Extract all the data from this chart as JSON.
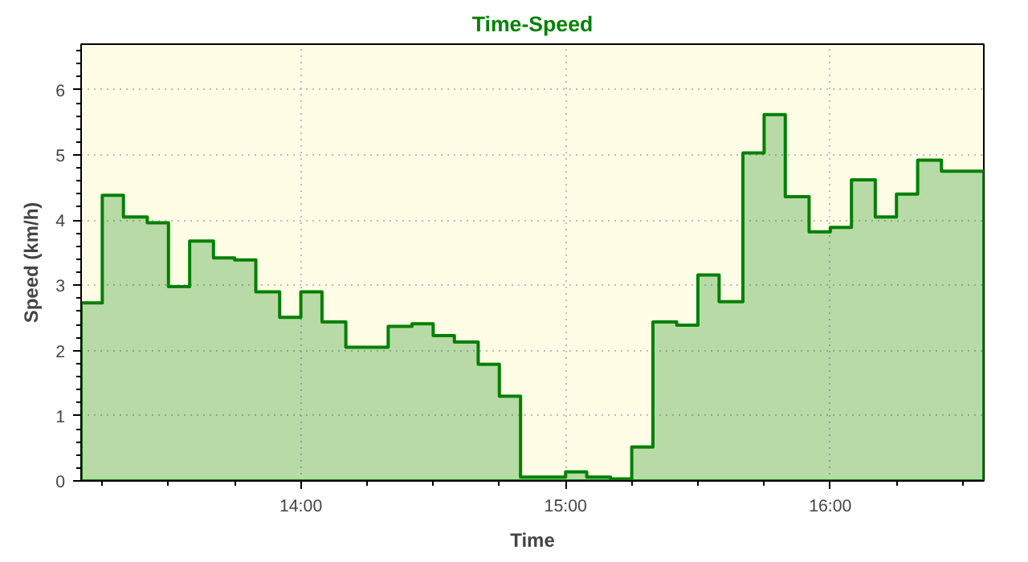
{
  "chart_data": {
    "type": "area",
    "title": "Time-Speed",
    "xlabel": "Time",
    "ylabel": "Speed (km/h)",
    "x": [
      13.17,
      13.25,
      13.33,
      13.42,
      13.5,
      13.58,
      13.67,
      13.75,
      13.83,
      13.92,
      14.0,
      14.08,
      14.17,
      14.25,
      14.33,
      14.42,
      14.5,
      14.58,
      14.67,
      14.75,
      14.83,
      14.92,
      15.0,
      15.08,
      15.17,
      15.25,
      15.33,
      15.42,
      15.5,
      15.58,
      15.67,
      15.75,
      15.83,
      15.92,
      16.0,
      16.08,
      16.17,
      16.25,
      16.33,
      16.42,
      16.58
    ],
    "series": [
      {
        "color": "#008000",
        "values": [
          2.73,
          4.38,
          4.05,
          3.96,
          2.98,
          3.68,
          3.42,
          3.39,
          2.9,
          2.51,
          2.9,
          2.44,
          2.05,
          2.05,
          2.37,
          2.41,
          2.23,
          2.13,
          1.79,
          1.3,
          0.06,
          0.06,
          0.14,
          0.06,
          0.03,
          0.52,
          2.44,
          2.39,
          3.16,
          2.75,
          5.03,
          5.62,
          4.36,
          3.82,
          3.89,
          4.62,
          4.05,
          4.4,
          4.92,
          4.75,
          4.75
        ]
      }
    ],
    "xlim": [
      13.17,
      16.58
    ],
    "ylim": [
      0,
      6.7
    ],
    "xticks": [
      {
        "value": 14,
        "label": "14:00"
      },
      {
        "value": 15,
        "label": "15:00"
      },
      {
        "value": 16,
        "label": "16:00"
      }
    ],
    "yticks": [
      0,
      1,
      2,
      3,
      4,
      5,
      6
    ],
    "grid": true,
    "marker": "none",
    "line_style": "solid"
  }
}
